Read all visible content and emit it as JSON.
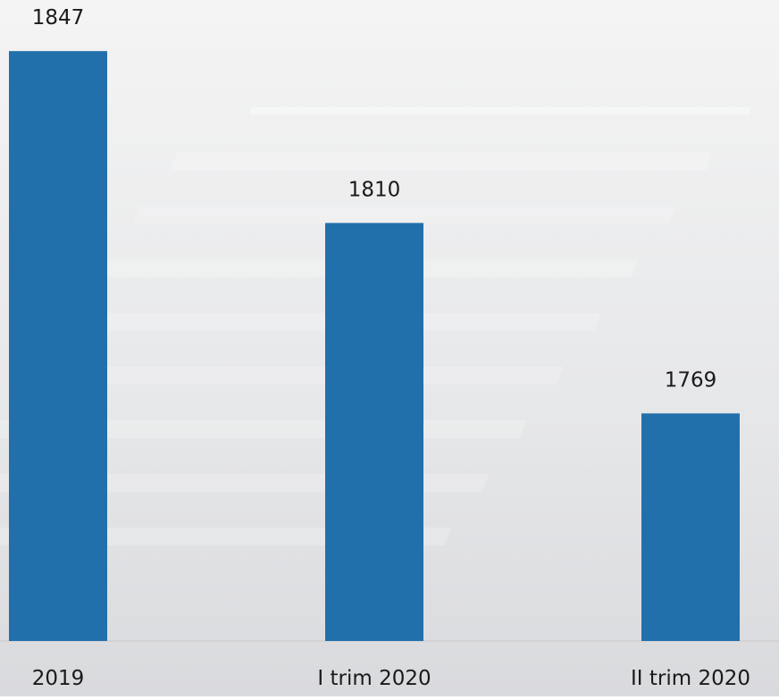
{
  "chart_data": {
    "type": "bar",
    "categories": [
      "2019",
      "I trim 2020",
      "II trim 2020"
    ],
    "values": [
      1847,
      1810,
      1769
    ],
    "color": "#2270ab",
    "ylim": [
      1720,
      1858
    ]
  }
}
